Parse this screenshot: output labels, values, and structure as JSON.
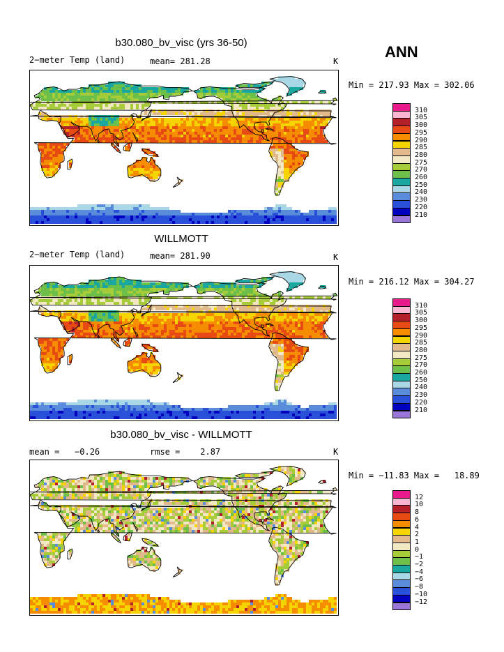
{
  "season": "ANN",
  "panels": [
    {
      "title": "b30.080_bv_visc (yrs 36-50)",
      "left_text": "2−meter Temp (land)",
      "mid_text": "mean= 281.28",
      "units": "K",
      "minmax": "Min = 217.93 Max = 302.06",
      "legend_labels": [
        "310",
        "305",
        "300",
        "295",
        "290",
        "285",
        "280",
        "275",
        "270",
        "260",
        "250",
        "240",
        "230",
        "220",
        "210"
      ],
      "colors": [
        "#e8198b",
        "#f9b6d0",
        "#b4202a",
        "#e84a14",
        "#f68d00",
        "#f6d400",
        "#e2b98b",
        "#f2e8c4",
        "#a6cc3a",
        "#6cc04a",
        "#1aa7a0",
        "#a8d8e6",
        "#5a8cdc",
        "#2850d8",
        "#0000c0",
        "#9a76d8"
      ],
      "variant": "clim"
    },
    {
      "title": "WILLMOTT",
      "left_text": "2−meter Temp (land)",
      "mid_text": "mean= 281.90",
      "units": "K",
      "minmax": "Min = 216.12 Max = 304.27",
      "legend_labels": [
        "310",
        "305",
        "300",
        "295",
        "290",
        "285",
        "280",
        "275",
        "270",
        "260",
        "250",
        "240",
        "230",
        "220",
        "210"
      ],
      "colors": [
        "#e8198b",
        "#f9b6d0",
        "#b4202a",
        "#e84a14",
        "#f68d00",
        "#f6d400",
        "#e2b98b",
        "#f2e8c4",
        "#a6cc3a",
        "#6cc04a",
        "#1aa7a0",
        "#a8d8e6",
        "#5a8cdc",
        "#2850d8",
        "#0000c0",
        "#9a76d8"
      ],
      "variant": "clim"
    },
    {
      "title": "b30.080_bv_visc - WILLMOTT",
      "left_text": "mean =   −0.26",
      "mid_text": "rmse =    2.87",
      "units": "K",
      "minmax": "Min = −11.83 Max =   18.89",
      "legend_labels": [
        "12",
        "10",
        "8",
        "6",
        "4",
        "2",
        "1",
        "0",
        "−1",
        "−2",
        "−4",
        "−6",
        "−8",
        "−10",
        "−12"
      ],
      "colors": [
        "#e8198b",
        "#f9b6d0",
        "#b4202a",
        "#e84a14",
        "#f68d00",
        "#f6d400",
        "#e2b98b",
        "#f2e8c4",
        "#a6cc3a",
        "#6cc04a",
        "#1aa7a0",
        "#a8d8e6",
        "#5a8cdc",
        "#2850d8",
        "#0000c0",
        "#9a76d8"
      ],
      "variant": "diff"
    }
  ]
}
